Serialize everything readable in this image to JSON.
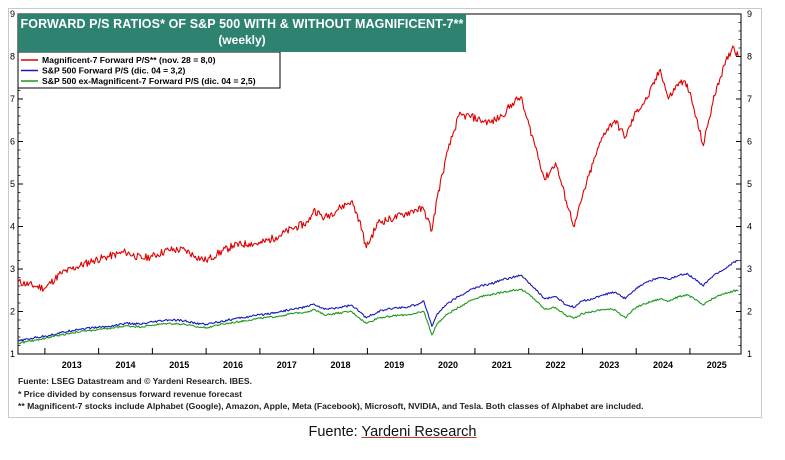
{
  "title": {
    "main": "FORWARD P/S RATIOS* OF S&P 500 WITH & WITHOUT MAGNIFICENT-7**",
    "sub": "(weekly)"
  },
  "notes": {
    "line1": "Fuente: LSEG Datastream and © Yardeni Research. IBES.",
    "line2": "* Price divided by consensus forward revenue forecast",
    "line3": "** Magnificent-7 stocks include Alphabet (Google), Amazon, Apple, Meta (Facebook), Microsoft, NVIDIA, and Tesla. Both classes of Alphabet are included."
  },
  "source": {
    "prefix": "Fuente: ",
    "link": "Yardeni Research"
  },
  "colors": {
    "mag7": "#e00000",
    "sp500": "#1a1ab8",
    "ex_mag7": "#1f9a1f",
    "title_bg": "#2e8270"
  },
  "chart_data": {
    "type": "line",
    "title": "FORWARD P/S RATIOS* OF S&P 500 WITH & WITHOUT MAGNIFICENT-7**",
    "subtitle": "(weekly)",
    "xlabel": "",
    "ylabel": "",
    "ylim": [
      1,
      9
    ],
    "xlim": [
      2012.5,
      2025.95
    ],
    "y_ticks": [
      1,
      2,
      3,
      4,
      5,
      6,
      7,
      8,
      9
    ],
    "x_tick_labels": [
      "2013",
      "2014",
      "2015",
      "2016",
      "2017",
      "2018",
      "2019",
      "2020",
      "2021",
      "2022",
      "2023",
      "2024",
      "2025"
    ],
    "legend_position": "top-left",
    "grid": false,
    "series": [
      {
        "name": "Magnificent-7 Forward P/S** (nov. 28 = 8,0)",
        "color": "#e00000",
        "x": [
          2012.5,
          2012.8,
          2013.0,
          2013.3,
          2013.6,
          2013.9,
          2014.2,
          2014.5,
          2014.8,
          2015.0,
          2015.3,
          2015.6,
          2015.8,
          2016.0,
          2016.2,
          2016.5,
          2016.8,
          2017.0,
          2017.3,
          2017.6,
          2017.9,
          2018.0,
          2018.2,
          2018.5,
          2018.7,
          2018.85,
          2018.98,
          2019.2,
          2019.5,
          2019.7,
          2019.9,
          2020.05,
          2020.2,
          2020.3,
          2020.5,
          2020.7,
          2020.9,
          2021.1,
          2021.3,
          2021.5,
          2021.7,
          2021.85,
          2021.95,
          2022.1,
          2022.3,
          2022.5,
          2022.7,
          2022.85,
          2023.0,
          2023.2,
          2023.4,
          2023.6,
          2023.8,
          2024.0,
          2024.2,
          2024.45,
          2024.6,
          2024.8,
          2024.95,
          2025.25,
          2025.35,
          2025.5,
          2025.65,
          2025.8,
          2025.9
        ],
        "values": [
          2.7,
          2.6,
          2.55,
          2.9,
          3.05,
          3.2,
          3.3,
          3.4,
          3.25,
          3.3,
          3.45,
          3.45,
          3.3,
          3.2,
          3.35,
          3.55,
          3.6,
          3.6,
          3.75,
          3.95,
          4.1,
          4.4,
          4.2,
          4.45,
          4.6,
          4.15,
          3.5,
          4.1,
          4.2,
          4.3,
          4.4,
          4.4,
          3.9,
          4.7,
          5.8,
          6.6,
          6.6,
          6.5,
          6.45,
          6.6,
          6.9,
          7.05,
          6.6,
          6.0,
          5.1,
          5.5,
          4.6,
          4.0,
          4.7,
          5.5,
          6.2,
          6.5,
          6.1,
          6.7,
          7.0,
          7.7,
          7.0,
          7.4,
          7.35,
          5.9,
          6.5,
          7.3,
          7.8,
          8.25,
          8.0
        ]
      },
      {
        "name": "S&P 500 Forward P/S (dic. 04 = 3,2)",
        "color": "#1a1ab8",
        "x": [
          2012.5,
          2012.8,
          2013.0,
          2013.3,
          2013.6,
          2013.9,
          2014.2,
          2014.5,
          2014.8,
          2015.0,
          2015.3,
          2015.6,
          2015.8,
          2016.0,
          2016.2,
          2016.5,
          2016.8,
          2017.0,
          2017.3,
          2017.6,
          2017.9,
          2018.0,
          2018.2,
          2018.5,
          2018.7,
          2018.85,
          2018.98,
          2019.2,
          2019.5,
          2019.7,
          2019.9,
          2020.05,
          2020.2,
          2020.3,
          2020.5,
          2020.7,
          2020.9,
          2021.1,
          2021.3,
          2021.5,
          2021.7,
          2021.85,
          2021.95,
          2022.1,
          2022.3,
          2022.5,
          2022.7,
          2022.85,
          2023.0,
          2023.2,
          2023.4,
          2023.6,
          2023.8,
          2024.0,
          2024.2,
          2024.45,
          2024.6,
          2024.8,
          2024.95,
          2025.25,
          2025.35,
          2025.5,
          2025.65,
          2025.8,
          2025.9
        ],
        "values": [
          1.3,
          1.38,
          1.42,
          1.5,
          1.58,
          1.62,
          1.65,
          1.72,
          1.7,
          1.75,
          1.8,
          1.78,
          1.72,
          1.7,
          1.75,
          1.82,
          1.88,
          1.92,
          1.98,
          2.05,
          2.12,
          2.18,
          2.05,
          2.1,
          2.15,
          2.0,
          1.85,
          2.0,
          2.08,
          2.1,
          2.15,
          2.25,
          1.65,
          1.95,
          2.2,
          2.35,
          2.5,
          2.6,
          2.65,
          2.75,
          2.8,
          2.85,
          2.75,
          2.55,
          2.3,
          2.35,
          2.15,
          2.1,
          2.25,
          2.3,
          2.4,
          2.45,
          2.3,
          2.55,
          2.7,
          2.8,
          2.75,
          2.85,
          2.9,
          2.6,
          2.75,
          2.9,
          3.0,
          3.15,
          3.2
        ]
      },
      {
        "name": "S&P 500 ex-Magnificent-7 Forward P/S (dic. 04 = 2,5)",
        "color": "#1f9a1f",
        "x": [
          2012.5,
          2012.8,
          2013.0,
          2013.3,
          2013.6,
          2013.9,
          2014.2,
          2014.5,
          2014.8,
          2015.0,
          2015.3,
          2015.6,
          2015.8,
          2016.0,
          2016.2,
          2016.5,
          2016.8,
          2017.0,
          2017.3,
          2017.6,
          2017.9,
          2018.0,
          2018.2,
          2018.5,
          2018.7,
          2018.85,
          2018.98,
          2019.2,
          2019.5,
          2019.7,
          2019.9,
          2020.05,
          2020.2,
          2020.3,
          2020.5,
          2020.7,
          2020.9,
          2021.1,
          2021.3,
          2021.5,
          2021.7,
          2021.85,
          2021.95,
          2022.1,
          2022.3,
          2022.5,
          2022.7,
          2022.85,
          2023.0,
          2023.2,
          2023.4,
          2023.6,
          2023.8,
          2024.0,
          2024.2,
          2024.45,
          2024.6,
          2024.8,
          2024.95,
          2025.25,
          2025.35,
          2025.5,
          2025.65,
          2025.8,
          2025.9
        ],
        "values": [
          1.25,
          1.32,
          1.37,
          1.45,
          1.52,
          1.56,
          1.6,
          1.66,
          1.64,
          1.68,
          1.72,
          1.7,
          1.64,
          1.62,
          1.68,
          1.74,
          1.8,
          1.84,
          1.88,
          1.95,
          2.0,
          2.05,
          1.92,
          1.97,
          2.0,
          1.85,
          1.72,
          1.85,
          1.9,
          1.92,
          1.95,
          2.0,
          1.45,
          1.72,
          1.95,
          2.1,
          2.25,
          2.35,
          2.4,
          2.45,
          2.5,
          2.52,
          2.45,
          2.3,
          2.05,
          2.1,
          1.9,
          1.85,
          1.95,
          2.0,
          2.05,
          2.05,
          1.85,
          2.1,
          2.2,
          2.3,
          2.25,
          2.35,
          2.4,
          2.15,
          2.25,
          2.35,
          2.42,
          2.48,
          2.5
        ]
      }
    ]
  }
}
